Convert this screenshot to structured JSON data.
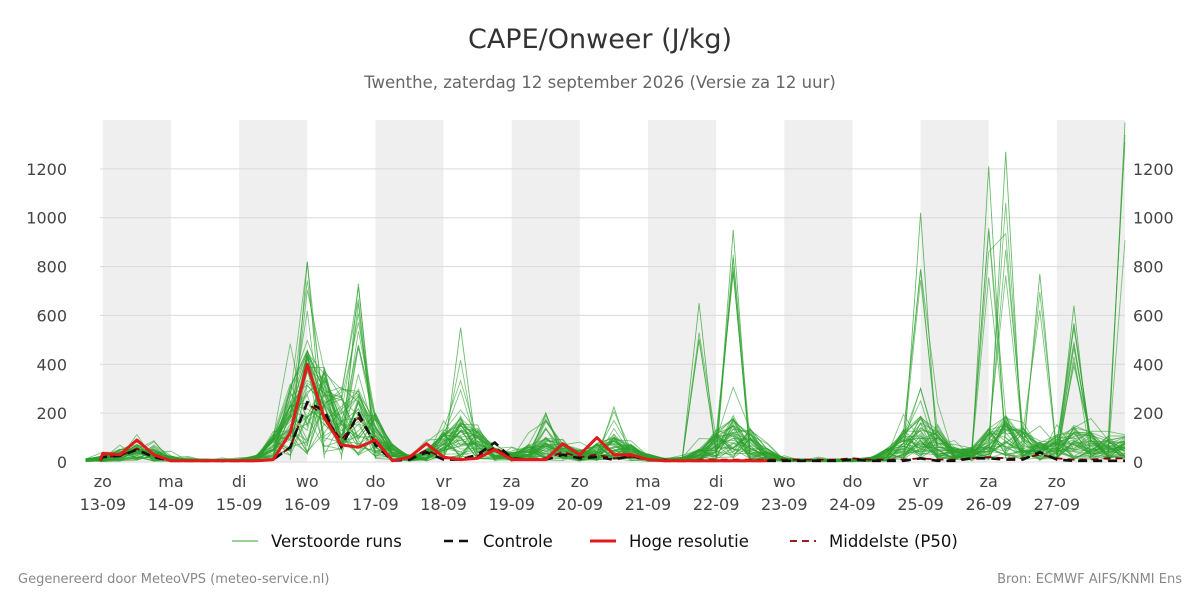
{
  "chart_data": {
    "type": "line",
    "title": "CAPE/Onweer (J/kg)",
    "subtitle": "Twenthe, zaterdag 12 september 2026 (Versie za 12 uur)",
    "ylim": [
      0,
      1400
    ],
    "y_ticks": [
      0,
      200,
      400,
      600,
      800,
      1000,
      1200
    ],
    "x_range": [
      -1,
      360
    ],
    "grid": "horizontal",
    "legend_position": "bottom",
    "day_labels": [
      {
        "day": "zo",
        "date": "13-09"
      },
      {
        "day": "ma",
        "date": "14-09"
      },
      {
        "day": "di",
        "date": "15-09"
      },
      {
        "day": "wo",
        "date": "16-09"
      },
      {
        "day": "do",
        "date": "17-09"
      },
      {
        "day": "vr",
        "date": "18-09"
      },
      {
        "day": "za",
        "date": "19-09"
      },
      {
        "day": "zo",
        "date": "20-09"
      },
      {
        "day": "ma",
        "date": "21-09"
      },
      {
        "day": "di",
        "date": "22-09"
      },
      {
        "day": "wo",
        "date": "23-09"
      },
      {
        "day": "do",
        "date": "24-09"
      },
      {
        "day": "vr",
        "date": "25-09"
      },
      {
        "day": "za",
        "date": "26-09"
      },
      {
        "day": "zo",
        "date": "27-09"
      }
    ],
    "weekend_shading": "alternate days",
    "series": [
      {
        "name": "Hoge resolutie",
        "color": "#e31a1c",
        "style": "solid-thick",
        "x": [
          -6,
          0,
          6,
          12,
          18,
          24,
          30,
          36,
          42,
          48,
          54,
          60,
          66,
          72,
          78,
          84,
          90,
          96,
          102,
          108,
          114,
          120,
          126,
          132,
          138,
          144,
          150,
          156,
          162,
          168,
          174,
          180,
          186,
          192,
          198,
          204,
          210,
          216,
          222,
          228,
          234
        ],
        "y": [
          5,
          35,
          30,
          90,
          30,
          5,
          5,
          5,
          5,
          5,
          5,
          10,
          120,
          400,
          180,
          70,
          60,
          90,
          5,
          20,
          75,
          20,
          10,
          15,
          50,
          10,
          10,
          10,
          75,
          30,
          100,
          30,
          30,
          10,
          5,
          5,
          5,
          5,
          5,
          5,
          5
        ]
      },
      {
        "name": "Controle",
        "color": "#111111",
        "style": "dashed",
        "x": [
          -6,
          0,
          6,
          12,
          18,
          24,
          30,
          36,
          42,
          48,
          54,
          60,
          66,
          72,
          78,
          84,
          90,
          96,
          102,
          108,
          114,
          120,
          126,
          132,
          138,
          144,
          150,
          156,
          162,
          168,
          174,
          180,
          186,
          192,
          198,
          204,
          210,
          216,
          222,
          228,
          234,
          240,
          246,
          252,
          258,
          264,
          270,
          276,
          282,
          288,
          294,
          300,
          306,
          312,
          318,
          324,
          330,
          336,
          342,
          348,
          354,
          360
        ],
        "y": [
          5,
          20,
          25,
          50,
          20,
          5,
          5,
          5,
          5,
          5,
          5,
          10,
          60,
          245,
          210,
          60,
          200,
          70,
          5,
          10,
          40,
          10,
          10,
          30,
          80,
          15,
          10,
          10,
          30,
          15,
          20,
          10,
          25,
          10,
          5,
          5,
          5,
          5,
          5,
          5,
          5,
          5,
          5,
          5,
          5,
          10,
          5,
          5,
          5,
          15,
          5,
          5,
          15,
          15,
          10,
          10,
          40,
          10,
          5,
          5,
          5,
          5
        ]
      },
      {
        "name": "Middelste (P50)",
        "color": "#8b0000",
        "style": "dashed-thin",
        "x": [
          -6,
          0,
          6,
          12,
          18,
          24,
          30,
          36,
          42,
          48,
          54,
          60,
          66,
          72,
          78,
          84,
          90,
          96,
          102,
          108,
          114,
          120,
          126,
          132,
          138,
          144,
          150,
          156,
          162,
          168,
          174,
          180,
          186,
          192,
          198,
          204,
          210,
          216,
          222,
          228,
          234,
          240,
          246,
          252,
          258,
          264,
          270,
          276,
          282,
          288,
          294,
          300,
          306,
          312,
          318,
          324,
          330,
          336,
          342,
          348,
          354,
          360
        ],
        "y": [
          5,
          20,
          25,
          55,
          20,
          5,
          5,
          5,
          5,
          5,
          5,
          10,
          60,
          240,
          190,
          90,
          180,
          80,
          10,
          15,
          50,
          15,
          15,
          25,
          60,
          15,
          10,
          15,
          40,
          20,
          30,
          15,
          20,
          10,
          10,
          5,
          10,
          10,
          10,
          10,
          10,
          10,
          10,
          10,
          10,
          15,
          10,
          10,
          10,
          15,
          10,
          10,
          15,
          20,
          15,
          15,
          30,
          15,
          10,
          10,
          15,
          15
        ]
      }
    ],
    "ensemble": {
      "name": "Verstoorde runs",
      "color": "#2ca02c",
      "members": 50,
      "x_step": 6,
      "x_start": -6,
      "representative_peaks": [
        {
          "x": 72,
          "y": 820
        },
        {
          "x": 90,
          "y": 730
        },
        {
          "x": 126,
          "y": 550
        },
        {
          "x": 156,
          "y": 200
        },
        {
          "x": 180,
          "y": 225
        },
        {
          "x": 210,
          "y": 650
        },
        {
          "x": 222,
          "y": 950
        },
        {
          "x": 288,
          "y": 1020
        },
        {
          "x": 312,
          "y": 1210
        },
        {
          "x": 318,
          "y": 1270
        },
        {
          "x": 330,
          "y": 770
        },
        {
          "x": 342,
          "y": 640
        },
        {
          "x": 360,
          "y": 1390
        }
      ]
    },
    "legend": [
      {
        "label": "Verstoorde runs",
        "color": "#2ca02c",
        "style": "thin"
      },
      {
        "label": "Controle",
        "color": "#111111",
        "style": "dashed"
      },
      {
        "label": "Hoge resolutie",
        "color": "#e31a1c",
        "style": "solid-thick"
      },
      {
        "label": "Middelste (P50)",
        "color": "#8b0000",
        "style": "dashed-thin"
      }
    ]
  },
  "footer": {
    "left": "Gegenereerd door MeteoVPS (meteo-service.nl)",
    "right": "Bron: ECMWF AIFS/KNMI Ens"
  }
}
